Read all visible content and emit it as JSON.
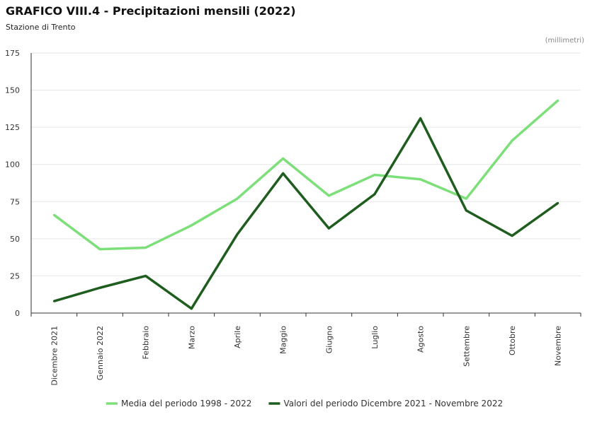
{
  "chart_data": {
    "type": "line",
    "title": "GRAFICO VIII.4 - Precipitazioni mensili (2022)",
    "subtitle": "Stazione di Trento",
    "unit_label": "(millimetri)",
    "xlabel": "",
    "ylabel": "",
    "ylim": [
      0,
      175
    ],
    "yticks": [
      0,
      25,
      50,
      75,
      100,
      125,
      150,
      175
    ],
    "grid": true,
    "legend_position": "bottom",
    "categories": [
      "Dicembre 2021",
      "Gennaio 2022",
      "Febbraio",
      "Marzo",
      "Aprile",
      "Maggio",
      "Giugno",
      "Luglio",
      "Agosto",
      "Settembre",
      "Ottobre",
      "Novembre"
    ],
    "series": [
      {
        "name": "Media del periodo 1998 - 2022",
        "color": "#7ddf7a",
        "values": [
          66,
          43,
          44,
          59,
          77,
          104,
          79,
          93,
          90,
          77,
          116,
          143
        ]
      },
      {
        "name": "Valori del periodo Dicembre 2021 - Novembre 2022",
        "color": "#1f5d1f",
        "values": [
          8,
          17,
          25,
          3,
          53,
          94,
          57,
          80,
          131,
          69,
          52,
          74
        ]
      }
    ]
  }
}
